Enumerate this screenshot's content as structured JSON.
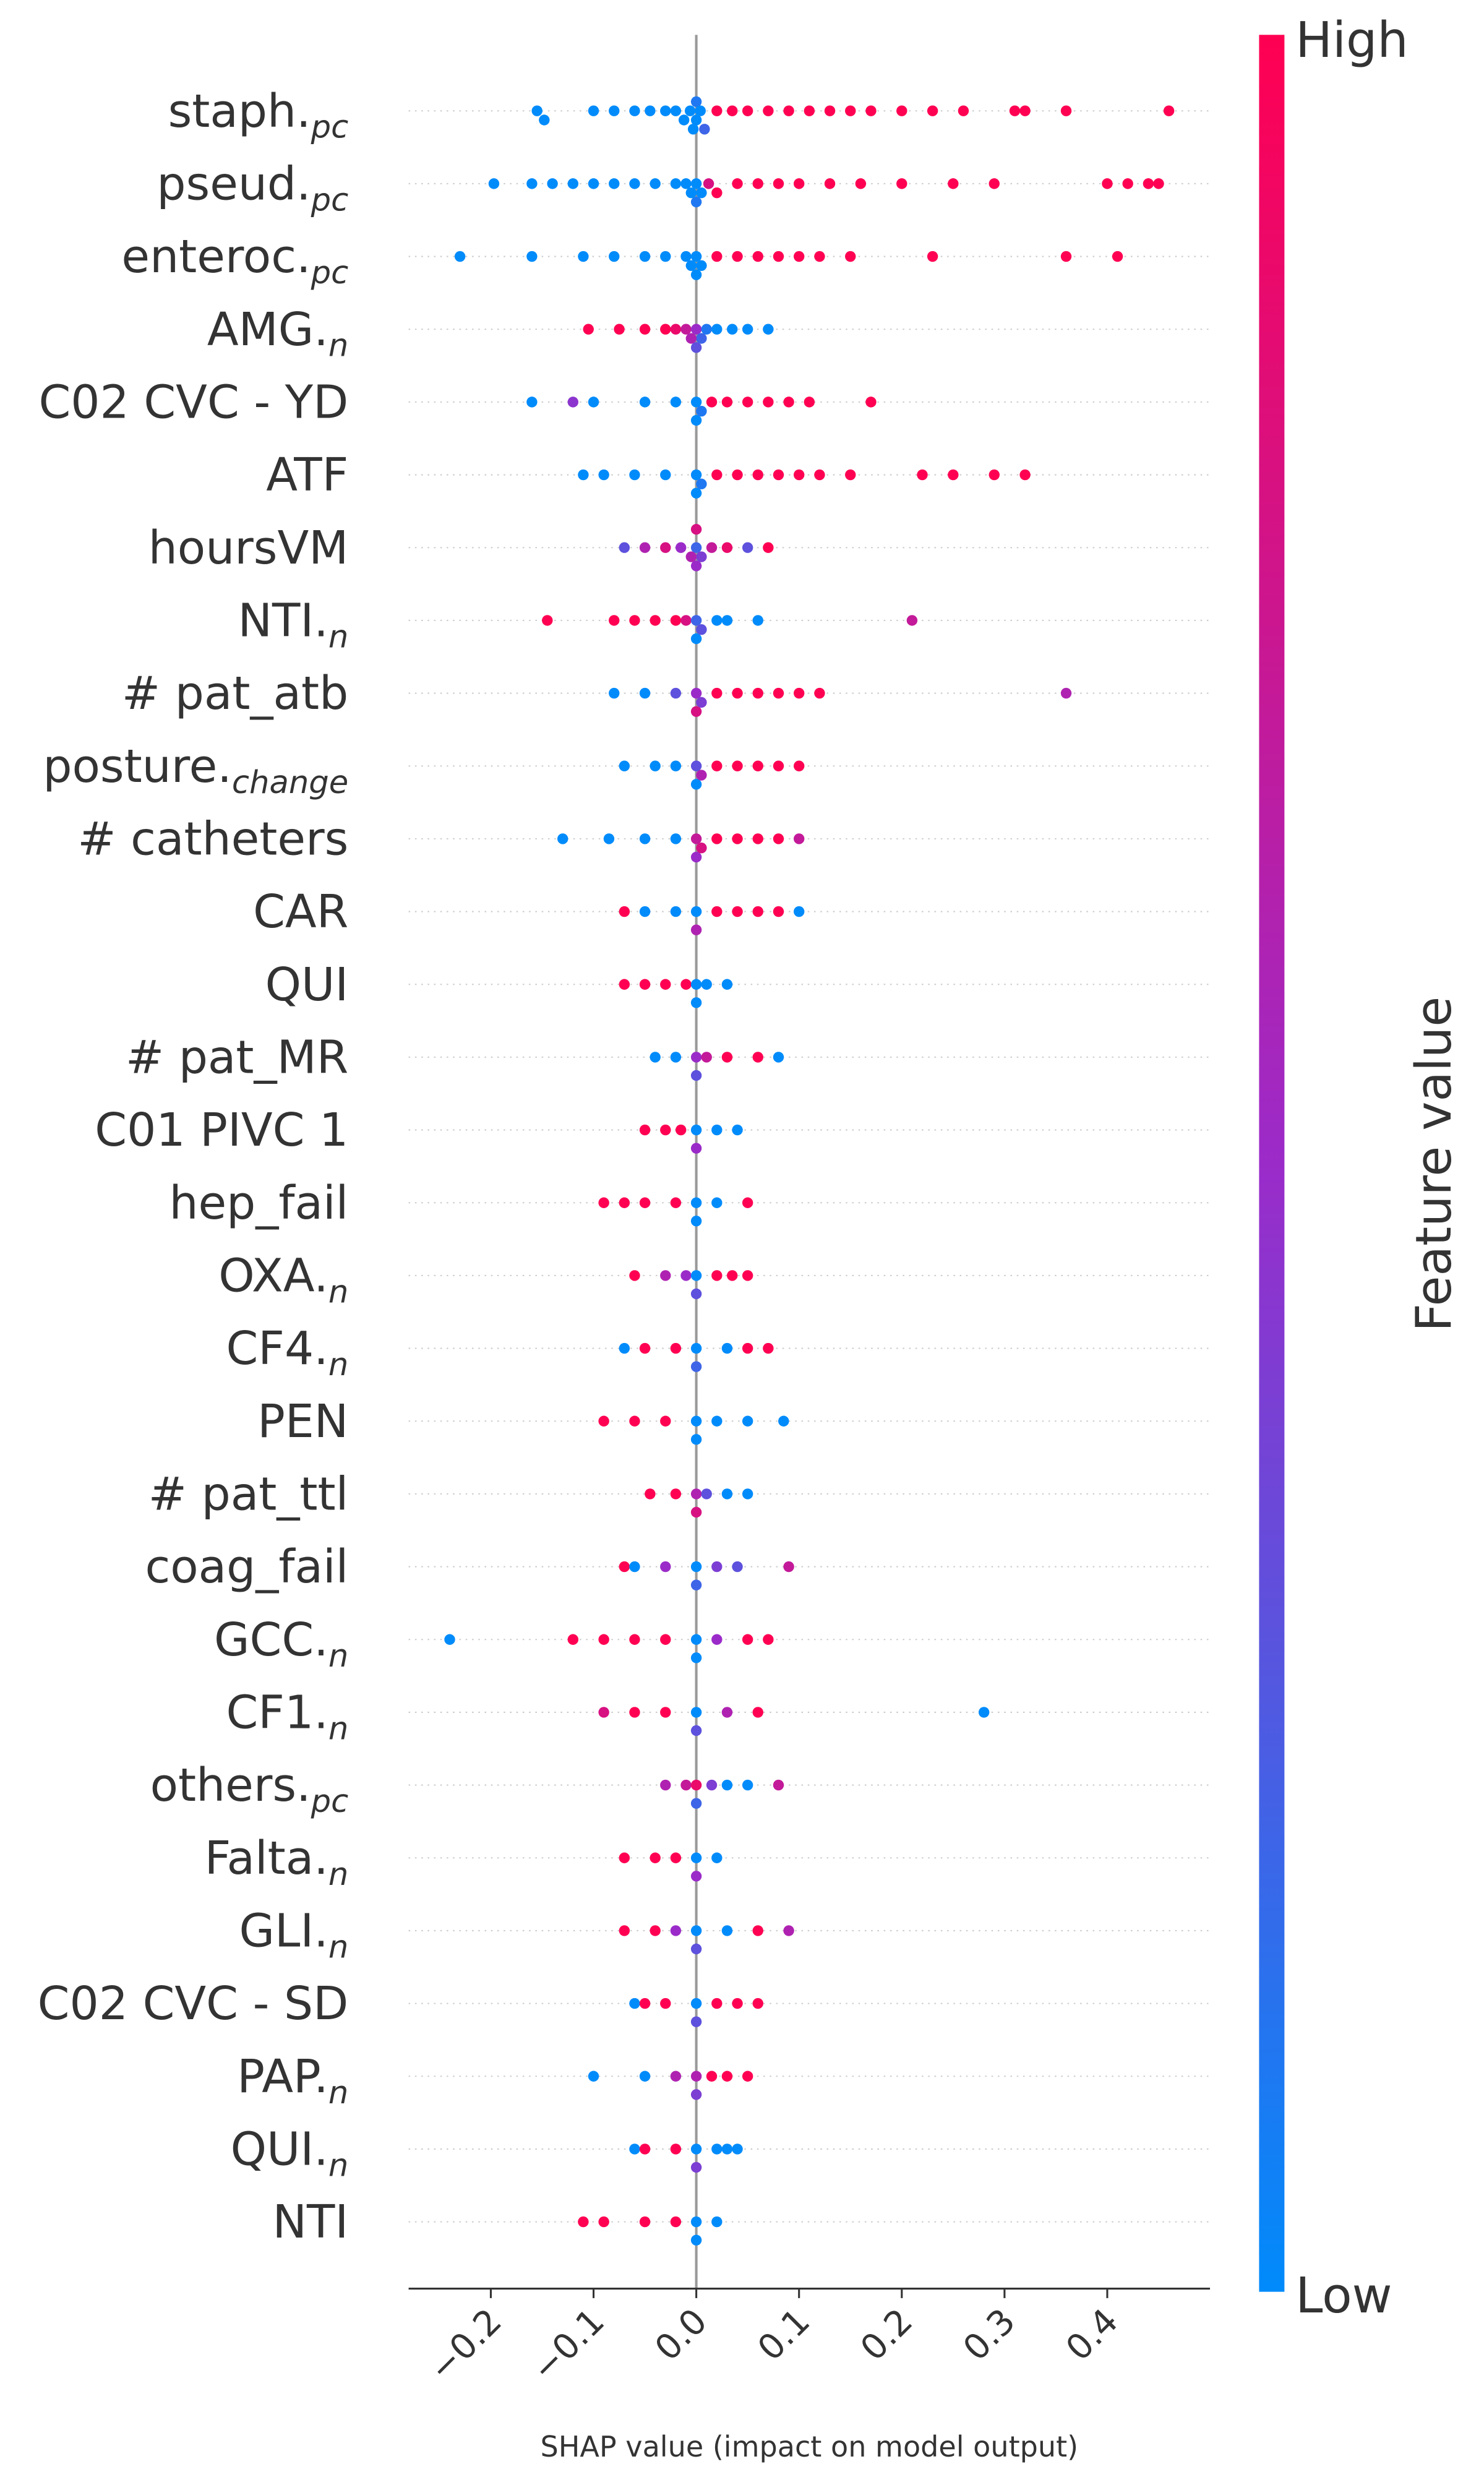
{
  "chart_data": {
    "type": "beeswarm",
    "x_label": "SHAP value (impact on model output)",
    "colorbar": {
      "label": "Feature value",
      "high": "High",
      "low": "Low"
    },
    "colormap": [
      "#008bfb",
      "#9b2bc9",
      "#ff0052"
    ],
    "xlim": [
      -0.28,
      0.5
    ],
    "xticks": [
      {
        "value": -0.2,
        "label": "−0.2"
      },
      {
        "value": -0.1,
        "label": "−0.1"
      },
      {
        "value": 0,
        "label": "0.0"
      },
      0.1,
      0.2,
      0.3,
      0.4
    ],
    "features": [
      {
        "name": "staph.",
        "subscript": "pc",
        "shap": [
          -0.155,
          -0.148,
          -0.1,
          -0.08,
          -0.06,
          -0.045,
          -0.03,
          -0.02,
          -0.012,
          -0.006,
          0,
          0,
          0.004,
          -0.003,
          0.008,
          0.02,
          0.035,
          0.05,
          0.07,
          0.09,
          0.11,
          0.13,
          0.15,
          0.17,
          0.2,
          0.23,
          0.26,
          0.31,
          0.32,
          0.36,
          0.46
        ],
        "feature_value": [
          0,
          0,
          0,
          0,
          0,
          0,
          0,
          0,
          0,
          0,
          0,
          0.1,
          0,
          0,
          0.2,
          1,
          1,
          1,
          1,
          1,
          1,
          1,
          1,
          1,
          1,
          1,
          1,
          1,
          1,
          1,
          1
        ]
      },
      {
        "name": "pseud.",
        "subscript": "pc",
        "shap": [
          -0.197,
          -0.16,
          -0.14,
          -0.12,
          -0.1,
          -0.08,
          -0.06,
          -0.04,
          -0.02,
          -0.01,
          0,
          0,
          0.005,
          -0.005,
          0.012,
          0.02,
          0.04,
          0.06,
          0.08,
          0.1,
          0.13,
          0.16,
          0.2,
          0.25,
          0.29,
          0.4,
          0.42,
          0.44,
          0.45
        ],
        "feature_value": [
          0,
          0,
          0,
          0,
          0,
          0,
          0,
          0,
          0,
          0,
          0,
          0.1,
          0,
          0,
          0.8,
          1,
          1,
          1,
          1,
          1,
          1,
          1,
          1,
          1,
          1,
          1,
          1,
          1,
          1
        ]
      },
      {
        "name": "enteroc.",
        "subscript": "pc",
        "shap": [
          -0.23,
          -0.16,
          -0.11,
          -0.08,
          -0.05,
          -0.03,
          -0.01,
          0,
          0,
          0.005,
          -0.005,
          0.02,
          0.04,
          0.06,
          0.08,
          0.1,
          0.12,
          0.15,
          0.23,
          0.36,
          0.41
        ],
        "feature_value": [
          0,
          0,
          0,
          0,
          0,
          0,
          0,
          0,
          0,
          0,
          0,
          1,
          1,
          1,
          1,
          1,
          1,
          1,
          1,
          1,
          1
        ]
      },
      {
        "name": "AMG.",
        "subscript": "n",
        "shap": [
          -0.105,
          -0.075,
          -0.05,
          -0.03,
          -0.02,
          -0.01,
          0,
          0,
          0.005,
          -0.005,
          0.01,
          0.02,
          0.035,
          0.05,
          0.07
        ],
        "feature_value": [
          1,
          1,
          1,
          1,
          0.9,
          0.7,
          0.5,
          0.3,
          0.2,
          0.6,
          0.1,
          0,
          0,
          0,
          0
        ]
      },
      {
        "name": "C02 CVC - YD",
        "shap": [
          -0.16,
          -0.12,
          -0.1,
          -0.05,
          -0.02,
          0,
          0,
          0.005,
          0.015,
          0.03,
          0.05,
          0.07,
          0.09,
          0.11,
          0.17
        ],
        "feature_value": [
          0,
          0.45,
          0,
          0,
          0,
          0,
          0,
          0.1,
          1,
          1,
          1,
          1,
          1,
          1,
          1
        ]
      },
      {
        "name": "ATF",
        "shap": [
          -0.11,
          -0.09,
          -0.06,
          -0.03,
          0,
          0,
          0.005,
          0.02,
          0.04,
          0.06,
          0.08,
          0.1,
          0.12,
          0.15,
          0.22,
          0.25,
          0.29,
          0.32
        ],
        "feature_value": [
          0,
          0,
          0,
          0,
          0,
          0,
          0.1,
          1,
          1,
          1,
          1,
          1,
          1,
          1,
          1,
          1,
          1,
          1
        ]
      },
      {
        "name": "hoursVM",
        "shap": [
          -0.07,
          -0.05,
          -0.03,
          -0.015,
          0,
          0,
          0,
          0.005,
          -0.005,
          0.015,
          0.03,
          0.05,
          0.07
        ],
        "feature_value": [
          0.3,
          0.6,
          0.8,
          0.5,
          0.2,
          0.5,
          0.8,
          0.4,
          0.6,
          0.7,
          0.9,
          0.3,
          1
        ]
      },
      {
        "name": "NTI.",
        "subscript": "n",
        "shap": [
          -0.145,
          -0.08,
          -0.06,
          -0.04,
          -0.02,
          -0.01,
          0,
          0,
          0.005,
          0.02,
          0.03,
          0.06,
          0.21
        ],
        "feature_value": [
          1,
          1,
          1,
          1,
          1,
          0.8,
          0.2,
          0,
          0.3,
          0,
          0,
          0,
          0.7
        ]
      },
      {
        "name": "# pat_atb",
        "shap": [
          -0.08,
          -0.05,
          -0.02,
          0,
          0,
          0.005,
          0.02,
          0.04,
          0.06,
          0.08,
          0.1,
          0.12,
          0.36
        ],
        "feature_value": [
          0,
          0,
          0.3,
          0.5,
          0.8,
          0.4,
          1,
          1,
          1,
          1,
          1,
          1,
          0.6
        ]
      },
      {
        "name": "posture.",
        "subscript": "change",
        "shap": [
          -0.07,
          -0.04,
          -0.02,
          0,
          0,
          0.005,
          0.02,
          0.04,
          0.06,
          0.08,
          0.1
        ],
        "feature_value": [
          0,
          0,
          0,
          0.3,
          0,
          0.6,
          1,
          1,
          1,
          1,
          1
        ]
      },
      {
        "name": "# catheters",
        "shap": [
          -0.13,
          -0.085,
          -0.05,
          -0.02,
          0,
          0,
          0.005,
          0.02,
          0.04,
          0.06,
          0.08,
          0.1
        ],
        "feature_value": [
          0,
          0,
          0,
          0,
          0.7,
          0.5,
          0.8,
          1,
          1,
          1,
          1,
          0.7
        ]
      },
      {
        "name": "CAR",
        "shap": [
          -0.07,
          -0.05,
          -0.02,
          0,
          0,
          0.02,
          0.04,
          0.06,
          0.08,
          0.1
        ],
        "feature_value": [
          1,
          0,
          0,
          0,
          0.6,
          1,
          1,
          1,
          1,
          0
        ]
      },
      {
        "name": "QUI",
        "shap": [
          -0.07,
          -0.05,
          -0.03,
          -0.01,
          0,
          0,
          0.01,
          0.03
        ],
        "feature_value": [
          1,
          1,
          1,
          1,
          0,
          0,
          0,
          0
        ]
      },
      {
        "name": "# pat_MR",
        "shap": [
          -0.04,
          -0.02,
          0,
          0,
          0.01,
          0.03,
          0.06,
          0.08
        ],
        "feature_value": [
          0,
          0,
          0.5,
          0.3,
          0.7,
          1,
          1,
          0
        ]
      },
      {
        "name": "C01 PIVC 1",
        "shap": [
          -0.05,
          -0.03,
          -0.015,
          0,
          0,
          0.02,
          0.04
        ],
        "feature_value": [
          1,
          1,
          1,
          0,
          0.5,
          0,
          0
        ]
      },
      {
        "name": "hep_fail",
        "shap": [
          -0.09,
          -0.07,
          -0.05,
          -0.02,
          0,
          0,
          0.02,
          0.05
        ],
        "feature_value": [
          1,
          1,
          1,
          1,
          0,
          0,
          0,
          1
        ]
      },
      {
        "name": "OXA.",
        "subscript": "n",
        "shap": [
          -0.06,
          -0.03,
          -0.01,
          0,
          0,
          0.02,
          0.035,
          0.05
        ],
        "feature_value": [
          1,
          0.6,
          0.5,
          0,
          0.3,
          1,
          1,
          1
        ]
      },
      {
        "name": "CF4.",
        "subscript": "n",
        "shap": [
          -0.07,
          -0.05,
          -0.02,
          0,
          0,
          0.03,
          0.05,
          0.07
        ],
        "feature_value": [
          0,
          1,
          1,
          0,
          0.2,
          0,
          1,
          1
        ]
      },
      {
        "name": "PEN",
        "shap": [
          -0.09,
          -0.06,
          -0.03,
          0,
          0,
          0.02,
          0.05,
          0.085
        ],
        "feature_value": [
          1,
          1,
          1,
          0,
          0,
          0,
          0,
          0
        ]
      },
      {
        "name": "# pat_ttl",
        "shap": [
          -0.045,
          -0.02,
          0,
          0,
          0.01,
          0.03,
          0.05
        ],
        "feature_value": [
          1,
          1,
          0.6,
          0.8,
          0.3,
          0,
          0
        ]
      },
      {
        "name": "coag_fail",
        "shap": [
          -0.07,
          -0.06,
          -0.03,
          0,
          0,
          0.02,
          0.04,
          0.09
        ],
        "feature_value": [
          1,
          0,
          0.5,
          0,
          0.2,
          0.4,
          0.3,
          0.7
        ]
      },
      {
        "name": "GCC.",
        "subscript": "n",
        "shap": [
          -0.24,
          -0.12,
          -0.09,
          -0.06,
          -0.03,
          0,
          0,
          0.02,
          0.05,
          0.07
        ],
        "feature_value": [
          0,
          1,
          1,
          1,
          1,
          0,
          0,
          0.5,
          1,
          1
        ]
      },
      {
        "name": "CF1.",
        "subscript": "n",
        "shap": [
          -0.09,
          -0.06,
          -0.03,
          0,
          0,
          0.03,
          0.06,
          0.28
        ],
        "feature_value": [
          0.8,
          1,
          1,
          0,
          0.3,
          0.6,
          1,
          0
        ]
      },
      {
        "name": "others.",
        "subscript": "pc",
        "shap": [
          -0.03,
          -0.01,
          0,
          0,
          0.015,
          0.03,
          0.05,
          0.08
        ],
        "feature_value": [
          0.6,
          0.7,
          0.9,
          0.2,
          0.4,
          0,
          0,
          0.7
        ]
      },
      {
        "name": "Falta.",
        "subscript": "n",
        "shap": [
          -0.07,
          -0.04,
          -0.02,
          0,
          0,
          0.02
        ],
        "feature_value": [
          1,
          1,
          1,
          0,
          0.5,
          0
        ]
      },
      {
        "name": "GLI.",
        "subscript": "n",
        "shap": [
          -0.07,
          -0.04,
          -0.02,
          0,
          0,
          0.03,
          0.06,
          0.09
        ],
        "feature_value": [
          1,
          1,
          0.5,
          0,
          0.3,
          0,
          1,
          0.6
        ]
      },
      {
        "name": "C02 CVC - SD",
        "shap": [
          -0.06,
          -0.05,
          -0.03,
          0,
          0,
          0.02,
          0.04,
          0.06
        ],
        "feature_value": [
          0,
          1,
          1,
          0,
          0.3,
          1,
          1,
          1
        ]
      },
      {
        "name": "PAP.",
        "subscript": "n",
        "shap": [
          -0.1,
          -0.05,
          -0.02,
          0,
          0,
          0.015,
          0.03,
          0.05
        ],
        "feature_value": [
          0,
          0,
          0.6,
          0.6,
          0.4,
          1,
          1,
          1
        ]
      },
      {
        "name": "QUI.",
        "subscript": "n",
        "shap": [
          -0.06,
          -0.05,
          -0.02,
          0,
          0,
          0.02,
          0.03,
          0.04
        ],
        "feature_value": [
          0,
          1,
          1,
          0,
          0.4,
          0,
          0,
          0
        ]
      },
      {
        "name": "NTI",
        "shap": [
          -0.11,
          -0.09,
          -0.05,
          -0.02,
          0,
          0,
          0.02
        ],
        "feature_value": [
          1,
          1,
          1,
          1,
          0,
          0,
          0
        ]
      }
    ]
  }
}
